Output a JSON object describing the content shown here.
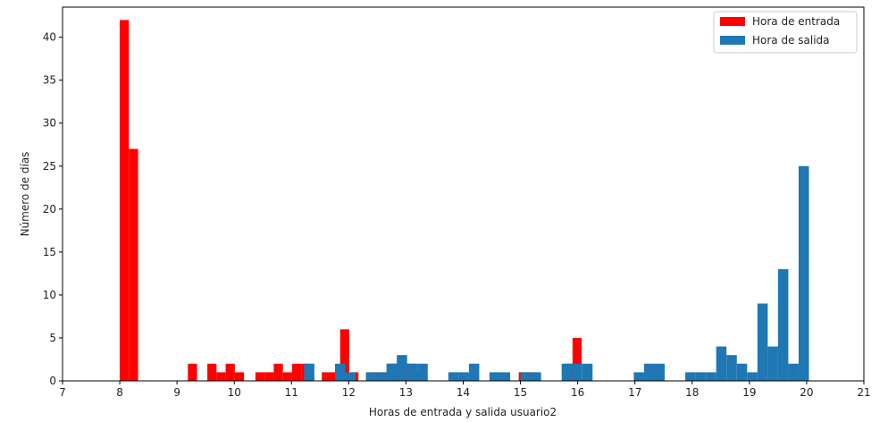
{
  "chart_data": {
    "type": "bar",
    "xlabel": "Horas de entrada y salida usuario2",
    "ylabel": "Número de días",
    "xlim": [
      7,
      21
    ],
    "ylim": [
      0,
      43.5
    ],
    "xticks": [
      "7",
      "8",
      "9",
      "10",
      "11",
      "12",
      "13",
      "14",
      "15",
      "16",
      "17",
      "18",
      "19",
      "20",
      "21"
    ],
    "yticks": [
      "0",
      "5",
      "10",
      "15",
      "20",
      "25",
      "30",
      "35",
      "40"
    ],
    "legend": {
      "placement": "top-right"
    },
    "grid": false,
    "series": [
      {
        "name": "Hora de entrada",
        "color": "#ff0000",
        "bin_width": 0.16,
        "bins": [
          {
            "x": 8.0,
            "y": 42
          },
          {
            "x": 8.16,
            "y": 27
          },
          {
            "x": 9.19,
            "y": 2
          },
          {
            "x": 9.53,
            "y": 2
          },
          {
            "x": 9.69,
            "y": 1
          },
          {
            "x": 9.85,
            "y": 2
          },
          {
            "x": 10.01,
            "y": 1
          },
          {
            "x": 10.37,
            "y": 1
          },
          {
            "x": 10.53,
            "y": 1
          },
          {
            "x": 10.69,
            "y": 2
          },
          {
            "x": 10.85,
            "y": 1
          },
          {
            "x": 11.01,
            "y": 2
          },
          {
            "x": 11.17,
            "y": 2
          },
          {
            "x": 11.53,
            "y": 1
          },
          {
            "x": 11.69,
            "y": 1
          },
          {
            "x": 11.85,
            "y": 6
          },
          {
            "x": 12.01,
            "y": 1
          },
          {
            "x": 12.37,
            "y": 1
          },
          {
            "x": 12.53,
            "y": 1
          },
          {
            "x": 12.69,
            "y": 2
          },
          {
            "x": 12.85,
            "y": 2
          },
          {
            "x": 13.01,
            "y": 2
          },
          {
            "x": 13.17,
            "y": 1
          },
          {
            "x": 14.97,
            "y": 1
          },
          {
            "x": 15.13,
            "y": 1
          },
          {
            "x": 15.75,
            "y": 2
          },
          {
            "x": 15.91,
            "y": 5
          }
        ]
      },
      {
        "name": "Hora de salida",
        "color": "#1f77b4",
        "bin_width": 0.18,
        "bins": [
          {
            "x": 11.22,
            "y": 2
          },
          {
            "x": 11.76,
            "y": 2
          },
          {
            "x": 11.94,
            "y": 1
          },
          {
            "x": 12.3,
            "y": 1
          },
          {
            "x": 12.48,
            "y": 1
          },
          {
            "x": 12.66,
            "y": 2
          },
          {
            "x": 12.84,
            "y": 3
          },
          {
            "x": 13.02,
            "y": 2
          },
          {
            "x": 13.2,
            "y": 2
          },
          {
            "x": 13.74,
            "y": 1
          },
          {
            "x": 13.92,
            "y": 1
          },
          {
            "x": 14.1,
            "y": 2
          },
          {
            "x": 14.46,
            "y": 1
          },
          {
            "x": 14.64,
            "y": 1
          },
          {
            "x": 15.0,
            "y": 1
          },
          {
            "x": 15.18,
            "y": 1
          },
          {
            "x": 15.72,
            "y": 2
          },
          {
            "x": 15.9,
            "y": 2
          },
          {
            "x": 16.08,
            "y": 2
          },
          {
            "x": 16.98,
            "y": 1
          },
          {
            "x": 17.16,
            "y": 2
          },
          {
            "x": 17.34,
            "y": 2
          },
          {
            "x": 17.88,
            "y": 1
          },
          {
            "x": 18.06,
            "y": 1
          },
          {
            "x": 18.24,
            "y": 1
          },
          {
            "x": 18.42,
            "y": 4
          },
          {
            "x": 18.6,
            "y": 3
          },
          {
            "x": 18.78,
            "y": 2
          },
          {
            "x": 18.96,
            "y": 1
          },
          {
            "x": 19.14,
            "y": 9
          },
          {
            "x": 19.32,
            "y": 4
          },
          {
            "x": 19.5,
            "y": 13
          },
          {
            "x": 19.68,
            "y": 2
          },
          {
            "x": 19.86,
            "y": 25
          }
        ]
      }
    ]
  }
}
